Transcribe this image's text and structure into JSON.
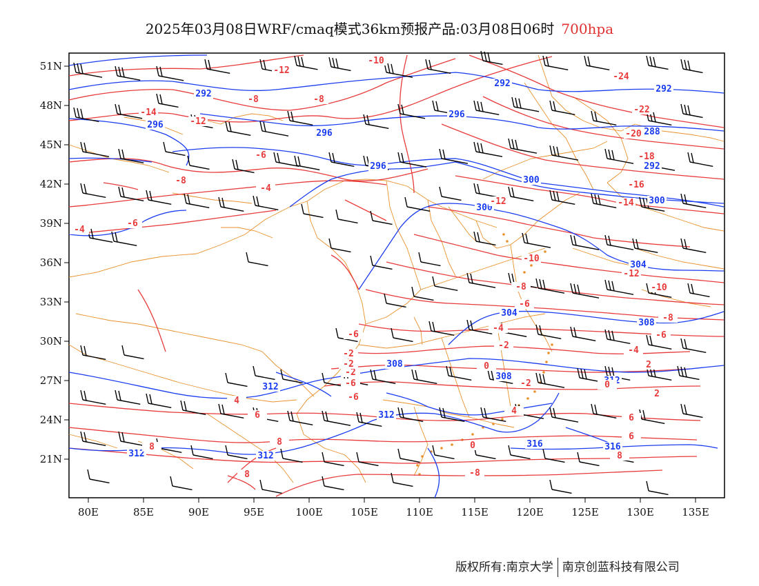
{
  "title": {
    "text": "2025年03月08日WRF/cmaq模式36km预报产品:03月08日06时",
    "level": "700hpa"
  },
  "axes": {
    "lon_ticks": [
      "80E",
      "85E",
      "90E",
      "95E",
      "100E",
      "105E",
      "110E",
      "115E",
      "120E",
      "125E",
      "130E",
      "135E"
    ],
    "lat_ticks": [
      "51N",
      "48N",
      "45N",
      "42N",
      "39N",
      "36N",
      "33N",
      "30N",
      "27N",
      "24N",
      "21N"
    ]
  },
  "colors": {
    "geopotential": "#1a3cf0",
    "temperature": "#e83a3a",
    "boundaries": "#e8902a",
    "wind": "#000000",
    "frame": "#000000"
  },
  "legend": {
    "geopotential_labels": [
      "292",
      "292",
      "296",
      "296",
      "296",
      "292",
      "288",
      "292",
      "296",
      "300",
      "300",
      "300",
      "304",
      "304",
      "308",
      "308",
      "308",
      "312",
      "312",
      "312",
      "312",
      "312",
      "316",
      "316"
    ],
    "temperature_labels": [
      "-12",
      "-10",
      "-14",
      "-12",
      "-8",
      "-8",
      "-24",
      "-22",
      "-20",
      "-18",
      "-16",
      "-14",
      "-12",
      "-6",
      "-8",
      "-4",
      "-6",
      "-4",
      "-10",
      "-12",
      "-10",
      "-8",
      "-6",
      "-8",
      "-6",
      "-6",
      "-4",
      "-2",
      "-2",
      "-4",
      "0",
      "2",
      "-2",
      "-6",
      "4",
      "6",
      "6",
      "8",
      "8",
      "0",
      "2",
      "-2",
      "-6",
      "-2",
      "-8",
      "4",
      "6",
      "8",
      "0",
      "8"
    ]
  },
  "footer": {
    "left": "版权所有:南京大学",
    "right": "南京创蓝科技有限公司"
  }
}
